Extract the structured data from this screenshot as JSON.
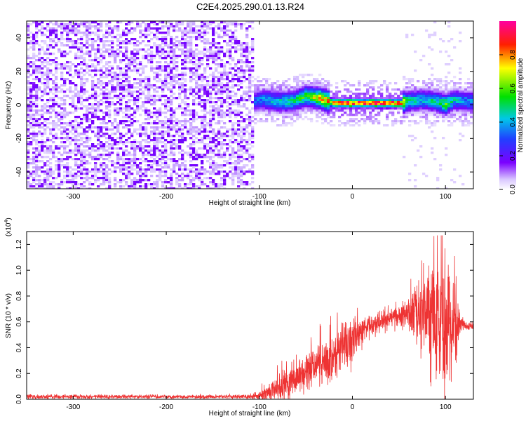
{
  "title": "C2E4.2025.290.01.13.R24",
  "chart_data": [
    {
      "type": "heatmap",
      "xlabel": "Height of straight line (km)",
      "ylabel": "Frequency (Hz)",
      "xlim": [
        -350,
        130
      ],
      "ylim": [
        -50,
        50
      ],
      "x_ticks": [
        -300,
        -200,
        -100,
        0,
        100
      ],
      "y_ticks": [
        -40,
        -20,
        0,
        20,
        40
      ],
      "colorbar": {
        "label": "Normalized spectral amplitude",
        "range": [
          0,
          1
        ],
        "ticks": [
          0.0,
          0.2,
          0.4,
          0.6,
          0.8
        ],
        "colormap": [
          "#ffffff",
          "#7b00ff",
          "#2040ff",
          "#00d8d8",
          "#00e000",
          "#ffff00",
          "#ff0000",
          "#ff00a0"
        ]
      },
      "noise_region_x": [
        -350,
        -105
      ],
      "ridge": {
        "x": [
          -107,
          -95,
          -80,
          -65,
          -50,
          -35,
          -20,
          -10,
          0,
          20,
          40,
          52,
          60,
          75,
          90,
          100,
          110,
          120,
          130
        ],
        "center_hz": [
          2,
          3,
          2,
          2,
          5,
          4,
          1,
          1,
          1,
          1,
          1,
          1,
          2,
          3,
          2,
          0,
          3,
          2,
          2
        ],
        "peak_amplitude": [
          0.35,
          0.4,
          0.45,
          0.5,
          0.6,
          0.75,
          0.9,
          0.95,
          0.95,
          0.95,
          0.95,
          0.9,
          0.5,
          0.45,
          0.5,
          0.6,
          0.45,
          0.4,
          0.4
        ]
      }
    },
    {
      "type": "line",
      "xlabel": "Height of straight line (km)",
      "ylabel": "SNR (10 * v/v)",
      "y_scale_label": "(x10",
      "y_scale_exp": "4",
      "y_scale_suffix": ")",
      "xlim": [
        -350,
        130
      ],
      "ylim": [
        0,
        1.3
      ],
      "x_ticks": [
        -300,
        -200,
        -100,
        0,
        100
      ],
      "y_ticks": [
        0.0,
        0.2,
        0.4,
        0.6,
        0.8,
        1.0,
        1.2
      ],
      "line_color": "#ee3333",
      "series": [
        {
          "x": [
            -350,
            -300,
            -200,
            -110,
            -100,
            -90,
            -80,
            -60,
            -40,
            -20,
            0,
            20,
            40,
            60,
            70,
            80,
            90,
            100,
            110,
            118,
            122,
            130
          ],
          "mean": [
            0.02,
            0.02,
            0.02,
            0.02,
            0.03,
            0.05,
            0.08,
            0.17,
            0.25,
            0.35,
            0.48,
            0.58,
            0.63,
            0.65,
            0.7,
            0.62,
            0.62,
            0.6,
            0.6,
            0.58,
            0.57,
            0.57
          ],
          "spread": [
            0.015,
            0.015,
            0.012,
            0.015,
            0.03,
            0.06,
            0.1,
            0.12,
            0.15,
            0.16,
            0.15,
            0.07,
            0.06,
            0.1,
            0.25,
            0.35,
            0.4,
            0.45,
            0.35,
            0.05,
            0.03,
            0.03
          ],
          "peak_max": 1.27
        }
      ]
    }
  ]
}
